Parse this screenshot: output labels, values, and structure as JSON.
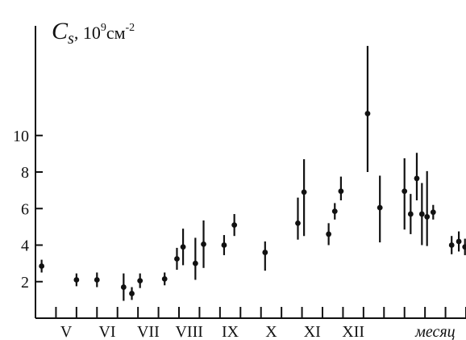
{
  "chart_data": {
    "type": "scatter",
    "title": "",
    "ylabel_symbol": "C",
    "ylabel_subscript": "s",
    "ylabel_unit_prefix": ", 10",
    "ylabel_unit_exp": "9",
    "ylabel_unit_base": "см",
    "ylabel_unit_exp2": "-2",
    "xlabel": "месяц",
    "ylim": [
      0,
      16
    ],
    "xlim": [
      0,
      21
    ],
    "y_ticks": [
      2,
      4,
      6,
      8,
      10
    ],
    "y_tick_labels": [
      "2",
      "4",
      "6",
      "8",
      "10"
    ],
    "x_tick_positions": [
      1,
      2,
      3,
      4,
      5,
      6,
      7,
      8,
      9,
      10,
      11,
      12,
      13,
      14,
      15,
      16,
      17,
      18,
      19,
      20,
      21
    ],
    "month_labels": [
      {
        "label": "V",
        "x": 1.5
      },
      {
        "label": "VI",
        "x": 3.5
      },
      {
        "label": "VII",
        "x": 5.5
      },
      {
        "label": "VIII",
        "x": 7.5
      },
      {
        "label": "IX",
        "x": 9.5
      },
      {
        "label": "X",
        "x": 11.5
      },
      {
        "label": "XI",
        "x": 13.5
      },
      {
        "label": "XII",
        "x": 15.5
      },
      {
        "label": "месяц",
        "x": 19.5,
        "italic": true
      }
    ],
    "points": [
      {
        "x": 0.3,
        "y": 2.85,
        "err_low": 0.35,
        "err_high": 0.35
      },
      {
        "x": 2.0,
        "y": 2.1,
        "err_low": 0.35,
        "err_high": 0.35
      },
      {
        "x": 3.0,
        "y": 2.1,
        "err_low": 0.4,
        "err_high": 0.4
      },
      {
        "x": 4.3,
        "y": 1.7,
        "err_low": 0.75,
        "err_high": 0.75
      },
      {
        "x": 4.7,
        "y": 1.35,
        "err_low": 0.35,
        "err_high": 0.35
      },
      {
        "x": 5.1,
        "y": 2.05,
        "err_low": 0.4,
        "err_high": 0.4
      },
      {
        "x": 6.3,
        "y": 2.15,
        "err_low": 0.35,
        "err_high": 0.35
      },
      {
        "x": 6.9,
        "y": 3.25,
        "err_low": 0.6,
        "err_high": 0.6
      },
      {
        "x": 7.2,
        "y": 3.9,
        "err_low": 1.0,
        "err_high": 1.0
      },
      {
        "x": 7.8,
        "y": 3.0,
        "err_low": 0.9,
        "err_high": 1.4
      },
      {
        "x": 8.2,
        "y": 4.05,
        "err_low": 1.3,
        "err_high": 1.3
      },
      {
        "x": 9.2,
        "y": 4.0,
        "err_low": 0.55,
        "err_high": 0.55
      },
      {
        "x": 9.7,
        "y": 5.1,
        "err_low": 0.6,
        "err_high": 0.6
      },
      {
        "x": 11.2,
        "y": 3.6,
        "err_low": 1.0,
        "err_high": 0.6
      },
      {
        "x": 12.8,
        "y": 5.2,
        "err_low": 0.9,
        "err_high": 1.4
      },
      {
        "x": 13.1,
        "y": 6.9,
        "err_low": 2.4,
        "err_high": 1.8
      },
      {
        "x": 14.3,
        "y": 4.6,
        "err_low": 0.6,
        "err_high": 0.6
      },
      {
        "x": 14.6,
        "y": 5.85,
        "err_low": 0.45,
        "err_high": 0.45
      },
      {
        "x": 14.9,
        "y": 6.95,
        "err_low": 0.5,
        "err_high": 0.8
      },
      {
        "x": 16.2,
        "y": 11.2,
        "err_low": 3.2,
        "err_high": 3.7
      },
      {
        "x": 16.8,
        "y": 6.05,
        "err_low": 1.9,
        "err_high": 1.75
      },
      {
        "x": 18.0,
        "y": 6.95,
        "err_low": 2.1,
        "err_high": 1.8
      },
      {
        "x": 18.3,
        "y": 5.7,
        "err_low": 1.1,
        "err_high": 1.1
      },
      {
        "x": 18.6,
        "y": 7.65,
        "err_low": 1.2,
        "err_high": 1.4
      },
      {
        "x": 18.85,
        "y": 5.7,
        "err_low": 1.7,
        "err_high": 1.7
      },
      {
        "x": 19.1,
        "y": 5.55,
        "err_low": 1.6,
        "err_high": 2.5
      },
      {
        "x": 19.4,
        "y": 5.8,
        "err_low": 0.4,
        "err_high": 0.4
      },
      {
        "x": 20.3,
        "y": 4.0,
        "err_low": 0.5,
        "err_high": 0.5
      },
      {
        "x": 20.65,
        "y": 4.2,
        "err_low": 0.55,
        "err_high": 0.55
      },
      {
        "x": 20.95,
        "y": 3.9,
        "err_low": 0.45,
        "err_high": 0.45
      }
    ]
  }
}
